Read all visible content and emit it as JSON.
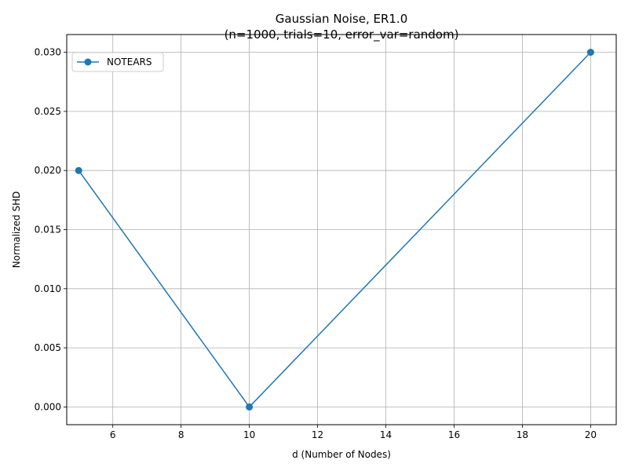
{
  "chart_data": {
    "type": "line",
    "title": "Gaussian Noise, ER1.0",
    "subtitle": "(n=1000, trials=10, error_var=random)",
    "xlabel": "d (Number of Nodes)",
    "ylabel": "Normalized SHD",
    "xlim": [
      4.65,
      20.75
    ],
    "ylim": [
      -0.0015,
      0.0315
    ],
    "xticks": [
      6,
      8,
      10,
      12,
      14,
      16,
      18,
      20
    ],
    "yticks": [
      0.0,
      0.005,
      0.01,
      0.015,
      0.02,
      0.025,
      0.03
    ],
    "ytick_labels": [
      "0.000",
      "0.005",
      "0.010",
      "0.015",
      "0.020",
      "0.025",
      "0.030"
    ],
    "grid": true,
    "legend_position": "top-left",
    "series": [
      {
        "name": "NOTEARS",
        "color": "#1f77b4",
        "marker": "circle",
        "x": [
          5,
          10,
          20
        ],
        "y": [
          0.02,
          0.0,
          0.03
        ]
      }
    ]
  }
}
